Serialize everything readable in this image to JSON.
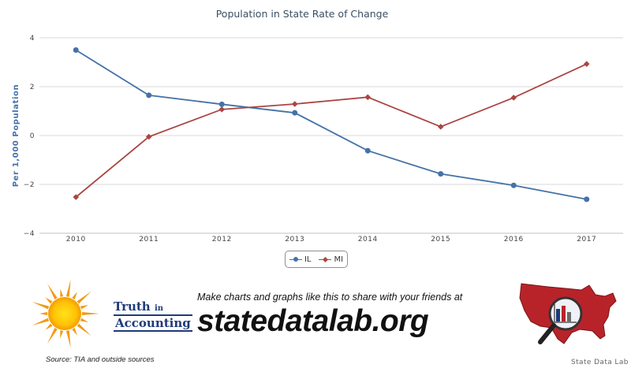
{
  "chart_data": {
    "type": "line",
    "title": "Population in State Rate of Change",
    "ylabel": "Per 1,000 Population",
    "xlabel": "",
    "categories": [
      "2010",
      "2011",
      "2012",
      "2013",
      "2014",
      "2015",
      "2016",
      "2017"
    ],
    "ylim": [
      -4,
      4
    ],
    "yticks": [
      4,
      2,
      0,
      -2,
      -4
    ],
    "ytick_labels": [
      "4",
      "2",
      "0",
      "−2",
      "−4"
    ],
    "grid": true,
    "legend_position": "bottom-center",
    "series": [
      {
        "name": "IL",
        "color": "#4572a7",
        "marker": "circle",
        "values": [
          3.5,
          1.65,
          1.28,
          0.93,
          -0.62,
          -1.57,
          -2.04,
          -2.61
        ]
      },
      {
        "name": "MI",
        "color": "#aa4643",
        "marker": "diamond",
        "values": [
          -2.52,
          -0.05,
          1.07,
          1.29,
          1.57,
          0.36,
          1.55,
          2.93
        ]
      }
    ]
  },
  "footer": {
    "logo_text_line1_word": "Truth",
    "logo_text_line1_small": "in",
    "logo_text_line2": "Accounting",
    "source": "Source: TIA and outside sources",
    "tagline": "Make charts and graphs like this to share with your friends at",
    "site": "statedatalab.org",
    "lab_name": "State Data Lab"
  },
  "icons": [
    "sun-icon",
    "usa-map-icon",
    "magnifier-icon"
  ]
}
